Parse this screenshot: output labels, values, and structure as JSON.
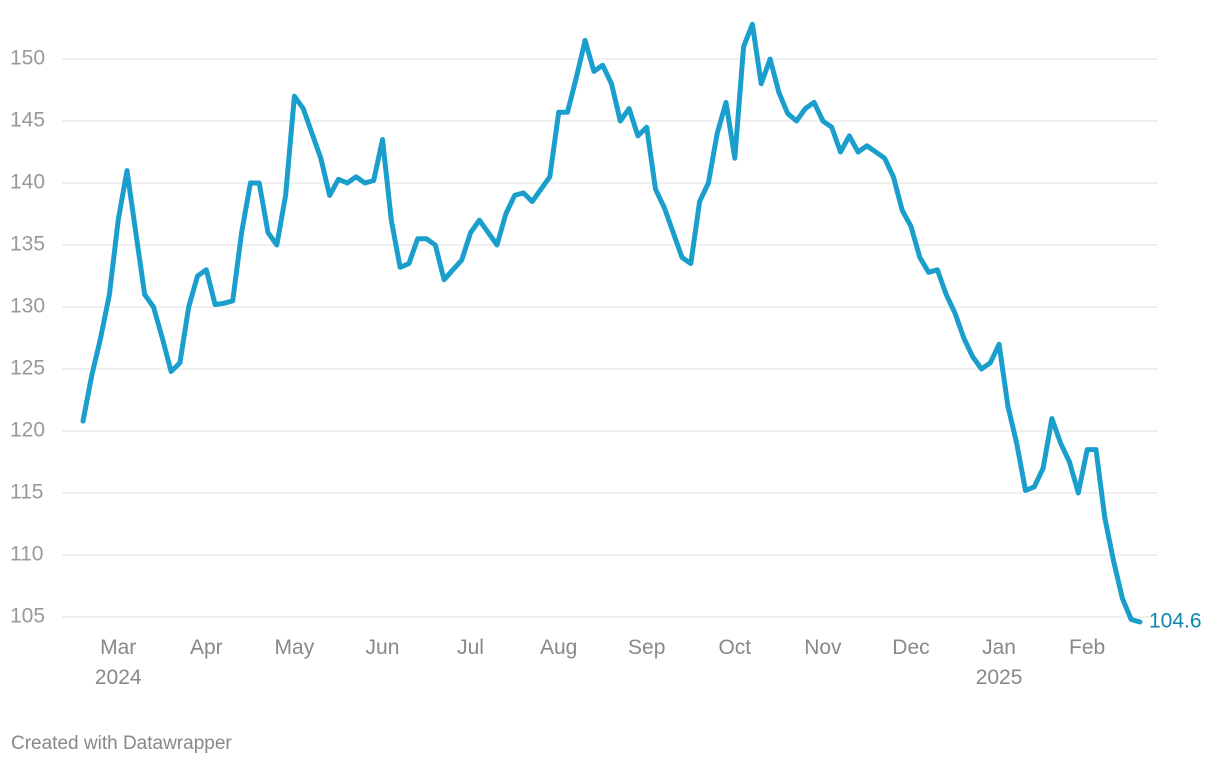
{
  "chart_data": {
    "type": "line",
    "credit": "Created with Datawrapper",
    "categories": [
      null,
      null,
      null,
      null,
      "Mar\n2024",
      null,
      null,
      null,
      null,
      null,
      null,
      null,
      null,
      null,
      "Apr",
      null,
      null,
      null,
      null,
      null,
      null,
      null,
      null,
      null,
      "May",
      null,
      null,
      null,
      null,
      null,
      null,
      null,
      null,
      null,
      "Jun",
      null,
      null,
      null,
      null,
      null,
      null,
      null,
      null,
      null,
      "Jul",
      null,
      null,
      null,
      null,
      null,
      null,
      null,
      null,
      null,
      "Aug",
      null,
      null,
      null,
      null,
      null,
      null,
      null,
      null,
      null,
      "Sep",
      null,
      null,
      null,
      null,
      null,
      null,
      null,
      null,
      null,
      "Oct",
      null,
      null,
      null,
      null,
      null,
      null,
      null,
      null,
      null,
      "Nov",
      null,
      null,
      null,
      null,
      null,
      null,
      null,
      null,
      null,
      "Dec",
      null,
      null,
      null,
      null,
      null,
      null,
      null,
      null,
      null,
      "Jan\n2025",
      null,
      null,
      null,
      null,
      null,
      null,
      null,
      null,
      null,
      "Feb",
      null,
      null,
      null,
      null,
      null,
      null
    ],
    "series": [
      {
        "color": "#1a9fcd",
        "values": [
          120.8,
          124.5,
          127.5,
          131,
          137,
          141,
          136,
          131,
          130,
          127.5,
          124.8,
          125.5,
          130,
          132.5,
          133,
          130.2,
          130.3,
          130.5,
          136,
          140,
          140,
          136,
          135,
          139,
          147,
          146,
          144,
          142,
          139,
          140.3,
          140,
          140.5,
          140,
          140.2,
          143.5,
          137,
          133.2,
          133.5,
          135.5,
          135.5,
          135,
          132.2,
          133,
          133.8,
          136,
          137,
          136,
          135,
          137.5,
          139,
          139.2,
          138.5,
          139.5,
          140.5,
          145.7,
          145.7,
          148.5,
          151.5,
          149,
          149.5,
          148,
          145,
          146,
          143.8,
          144.5,
          139.5,
          138,
          136,
          134,
          133.5,
          138.5,
          140,
          144,
          146.5,
          142,
          151,
          152.8,
          148,
          150,
          147.3,
          145.6,
          145,
          146,
          146.5,
          145,
          144.5,
          142.5,
          143.8,
          142.5,
          143,
          142.5,
          142,
          140.5,
          137.8,
          136.5,
          134,
          132.8,
          133,
          131,
          129.5,
          127.5,
          126,
          125,
          125.5,
          127,
          122,
          119,
          115.2,
          115.5,
          117,
          121,
          119,
          117.5,
          115,
          118.5,
          118.5,
          113,
          109.5,
          106.5,
          104.8,
          104.6
        ]
      }
    ],
    "ylim": [
      105,
      150
    ],
    "yticks": [
      105,
      110,
      115,
      120,
      125,
      130,
      135,
      140,
      145,
      150
    ],
    "grid": true,
    "end_label_color": "#0e87b0"
  }
}
